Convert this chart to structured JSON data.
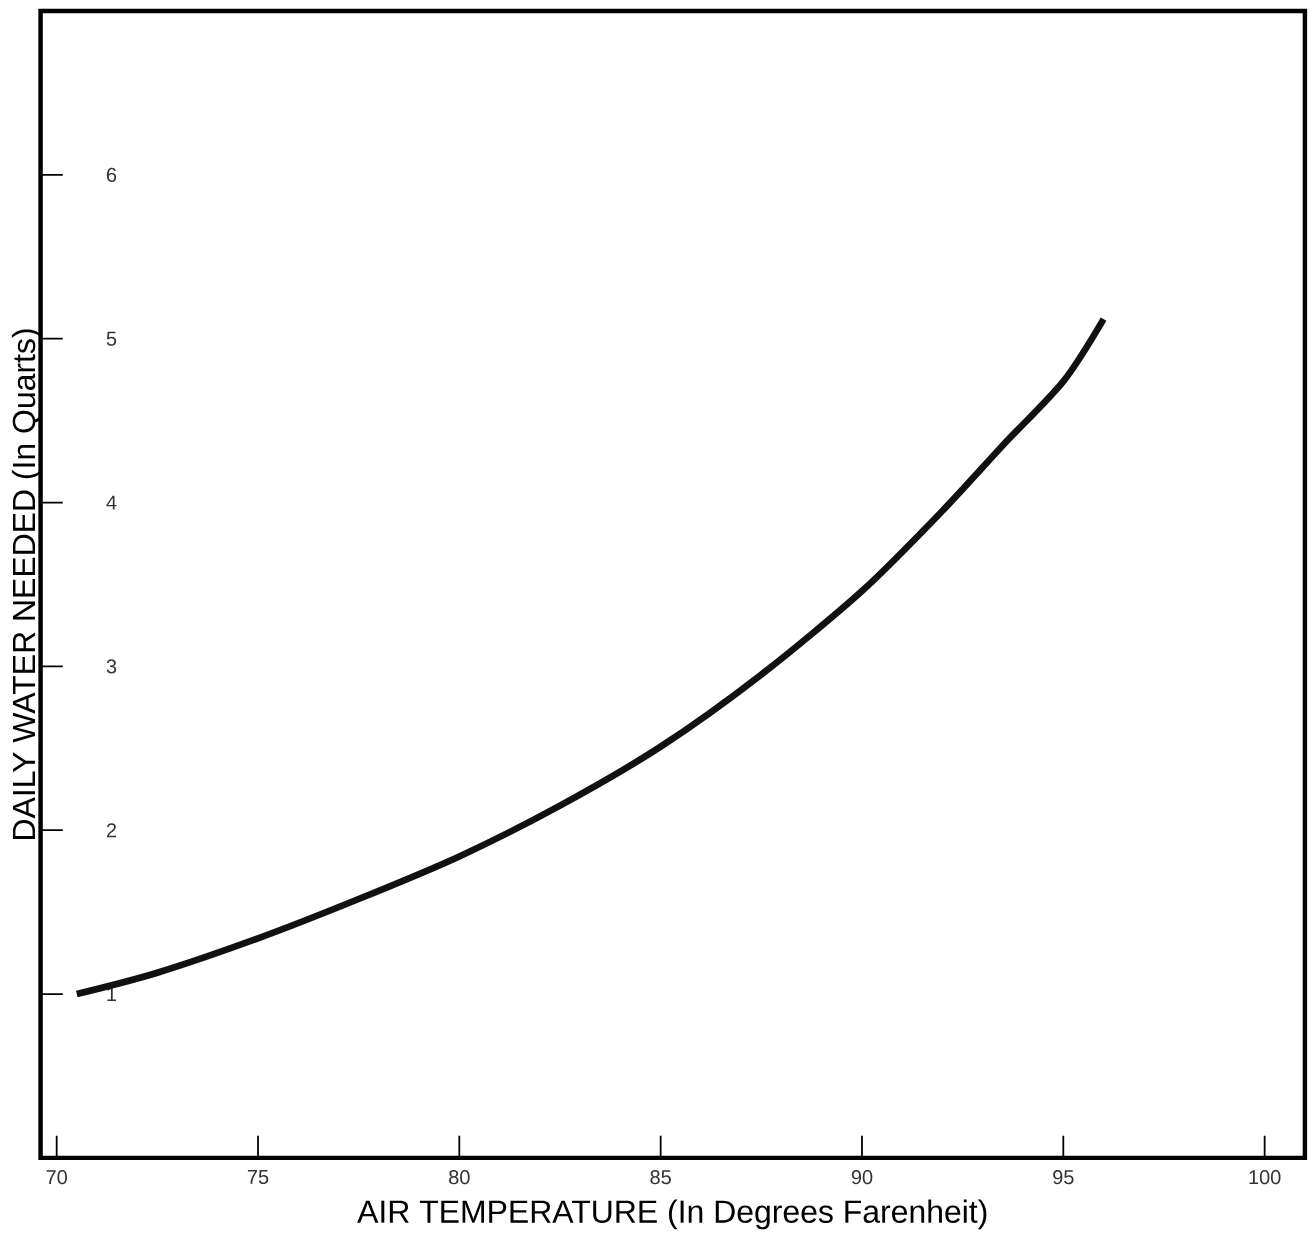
{
  "chart_data": {
    "type": "line",
    "xlabel": "AIR TEMPERATURE (In Degrees Farenheit)",
    "ylabel": "DAILY WATER NEEDED (In Quarts)",
    "x": [
      70.5,
      72.5,
      75,
      77.5,
      80,
      82.5,
      85,
      87.5,
      90,
      92,
      93.5,
      95,
      96
    ],
    "series": [
      {
        "color": "#111111",
        "values": [
          1.0,
          1.13,
          1.34,
          1.58,
          1.84,
          2.15,
          2.51,
          2.95,
          3.46,
          3.95,
          4.35,
          4.74,
          5.12
        ]
      }
    ],
    "xlim": [
      69.6,
      101
    ],
    "ylim": [
      0,
      7
    ],
    "xticks": [
      70,
      75,
      80,
      85,
      90,
      95,
      100
    ],
    "yticks": [
      1,
      2,
      3,
      4,
      5,
      6
    ],
    "grid": false,
    "marker": "none",
    "line_style": "solid"
  }
}
